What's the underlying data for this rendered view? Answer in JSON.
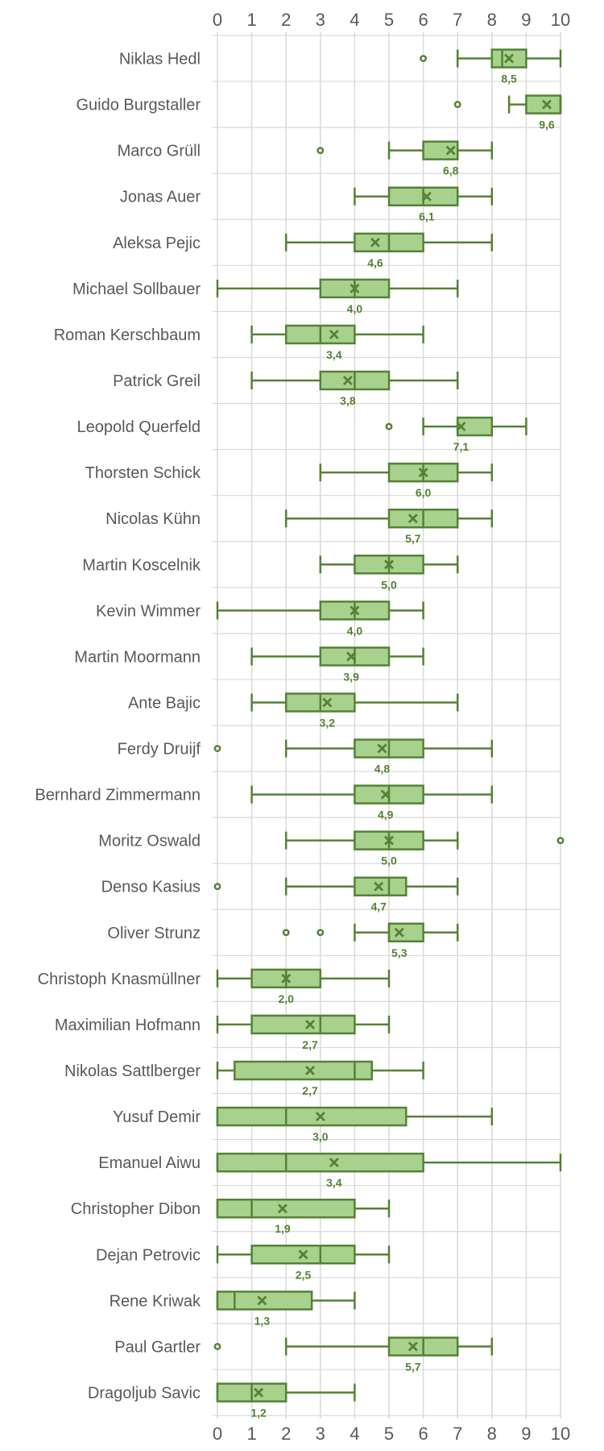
{
  "chart_data": {
    "type": "box",
    "orientation": "horizontal",
    "xlim": [
      0,
      10
    ],
    "x_ticks": [
      "0",
      "1",
      "2",
      "3",
      "4",
      "5",
      "6",
      "7",
      "8",
      "9",
      "10"
    ],
    "grid": true,
    "colors": {
      "box_fill": "#a9d18e",
      "box_stroke": "#548235",
      "text": "#595959",
      "grid": "#d9d9d9"
    },
    "categories": [
      {
        "name": "Niklas Hedl",
        "min": 7,
        "q1": 8,
        "median": 8.3,
        "q3": 9,
        "max": 10,
        "mean": 8.5,
        "mean_label": "8,5",
        "outliers": [
          6
        ]
      },
      {
        "name": "Guido Burgstaller",
        "min": 8.5,
        "q1": 9,
        "median": 10,
        "q3": 10,
        "max": 10,
        "mean": 9.6,
        "mean_label": "9,6",
        "outliers": [
          7
        ]
      },
      {
        "name": "Marco Grüll",
        "min": 5,
        "q1": 6,
        "median": 7,
        "q3": 7,
        "max": 8,
        "mean": 6.8,
        "mean_label": "6,8",
        "outliers": [
          3
        ]
      },
      {
        "name": "Jonas Auer",
        "min": 4,
        "q1": 5,
        "median": 6,
        "q3": 7,
        "max": 8,
        "mean": 6.1,
        "mean_label": "6,1",
        "outliers": []
      },
      {
        "name": "Aleksa Pejic",
        "min": 2,
        "q1": 4,
        "median": 5,
        "q3": 6,
        "max": 8,
        "mean": 4.6,
        "mean_label": "4,6",
        "outliers": []
      },
      {
        "name": "Michael Sollbauer",
        "min": 0,
        "q1": 3,
        "median": 4,
        "q3": 5,
        "max": 7,
        "mean": 4.0,
        "mean_label": "4,0",
        "outliers": []
      },
      {
        "name": "Roman Kerschbaum",
        "min": 1,
        "q1": 2,
        "median": 3,
        "q3": 4,
        "max": 6,
        "mean": 3.4,
        "mean_label": "3,4",
        "outliers": []
      },
      {
        "name": "Patrick Greil",
        "min": 1,
        "q1": 3,
        "median": 4,
        "q3": 5,
        "max": 7,
        "mean": 3.8,
        "mean_label": "3,8",
        "outliers": []
      },
      {
        "name": "Leopold Querfeld",
        "min": 6,
        "q1": 7,
        "median": 7,
        "q3": 8,
        "max": 9,
        "mean": 7.1,
        "mean_label": "7,1",
        "outliers": [
          5
        ]
      },
      {
        "name": "Thorsten Schick",
        "min": 3,
        "q1": 5,
        "median": 6,
        "q3": 7,
        "max": 8,
        "mean": 6.0,
        "mean_label": "6,0",
        "outliers": []
      },
      {
        "name": "Nicolas Kühn",
        "min": 2,
        "q1": 5,
        "median": 6,
        "q3": 7,
        "max": 8,
        "mean": 5.7,
        "mean_label": "5,7",
        "outliers": []
      },
      {
        "name": "Martin Koscelnik",
        "min": 3,
        "q1": 4,
        "median": 5,
        "q3": 6,
        "max": 7,
        "mean": 5.0,
        "mean_label": "5,0",
        "outliers": []
      },
      {
        "name": "Kevin Wimmer",
        "min": 0,
        "q1": 3,
        "median": 4,
        "q3": 5,
        "max": 6,
        "mean": 4.0,
        "mean_label": "4,0",
        "outliers": []
      },
      {
        "name": "Martin Moormann",
        "min": 1,
        "q1": 3,
        "median": 4,
        "q3": 5,
        "max": 6,
        "mean": 3.9,
        "mean_label": "3,9",
        "outliers": []
      },
      {
        "name": "Ante Bajic",
        "min": 1,
        "q1": 2,
        "median": 3,
        "q3": 4,
        "max": 7,
        "mean": 3.2,
        "mean_label": "3,2",
        "outliers": []
      },
      {
        "name": "Ferdy Druijf",
        "min": 2,
        "q1": 4,
        "median": 5,
        "q3": 6,
        "max": 8,
        "mean": 4.8,
        "mean_label": "4,8",
        "outliers": [
          0
        ]
      },
      {
        "name": "Bernhard Zimmermann",
        "min": 1,
        "q1": 4,
        "median": 5,
        "q3": 6,
        "max": 8,
        "mean": 4.9,
        "mean_label": "4,9",
        "outliers": []
      },
      {
        "name": "Moritz Oswald",
        "min": 2,
        "q1": 4,
        "median": 5,
        "q3": 6,
        "max": 7,
        "mean": 5.0,
        "mean_label": "5,0",
        "outliers": [
          10
        ]
      },
      {
        "name": "Denso Kasius",
        "min": 2,
        "q1": 4,
        "median": 5,
        "q3": 5.5,
        "max": 7,
        "mean": 4.7,
        "mean_label": "4,7",
        "outliers": [
          0
        ]
      },
      {
        "name": "Oliver Strunz",
        "min": 4,
        "q1": 5,
        "median": 5,
        "q3": 6,
        "max": 7,
        "mean": 5.3,
        "mean_label": "5,3",
        "outliers": [
          2,
          3
        ]
      },
      {
        "name": "Christoph Knasmüllner",
        "min": 0,
        "q1": 1,
        "median": 2,
        "q3": 3,
        "max": 5,
        "mean": 2.0,
        "mean_label": "2,0",
        "outliers": []
      },
      {
        "name": "Maximilian Hofmann",
        "min": 0,
        "q1": 1,
        "median": 3,
        "q3": 4,
        "max": 5,
        "mean": 2.7,
        "mean_label": "2,7",
        "outliers": []
      },
      {
        "name": "Nikolas Sattlberger",
        "min": 0,
        "q1": 0.5,
        "median": 4,
        "q3": 4.5,
        "max": 6,
        "mean": 2.7,
        "mean_label": "2,7",
        "outliers": []
      },
      {
        "name": "Yusuf Demir",
        "min": 0,
        "q1": 0,
        "median": 2,
        "q3": 5.5,
        "max": 8,
        "mean": 3.0,
        "mean_label": "3,0",
        "outliers": []
      },
      {
        "name": "Emanuel Aiwu",
        "min": 0,
        "q1": 0,
        "median": 2,
        "q3": 6,
        "max": 10,
        "mean": 3.4,
        "mean_label": "3,4",
        "outliers": []
      },
      {
        "name": "Christopher Dibon",
        "min": 0,
        "q1": 0,
        "median": 1,
        "q3": 4,
        "max": 5,
        "mean": 1.9,
        "mean_label": "1,9",
        "outliers": []
      },
      {
        "name": "Dejan Petrovic",
        "min": 0,
        "q1": 1,
        "median": 3,
        "q3": 4,
        "max": 5,
        "mean": 2.5,
        "mean_label": "2,5",
        "outliers": []
      },
      {
        "name": "Rene Kriwak",
        "min": 0,
        "q1": 0,
        "median": 0.5,
        "q3": 2.75,
        "max": 4,
        "mean": 1.3,
        "mean_label": "1,3",
        "outliers": []
      },
      {
        "name": "Paul Gartler",
        "min": 2,
        "q1": 5,
        "median": 6,
        "q3": 7,
        "max": 8,
        "mean": 5.7,
        "mean_label": "5,7",
        "outliers": [
          0
        ]
      },
      {
        "name": "Dragoljub Savic",
        "min": 0,
        "q1": 0,
        "median": 1,
        "q3": 2,
        "max": 4,
        "mean": 1.2,
        "mean_label": "1,2",
        "outliers": []
      }
    ]
  }
}
